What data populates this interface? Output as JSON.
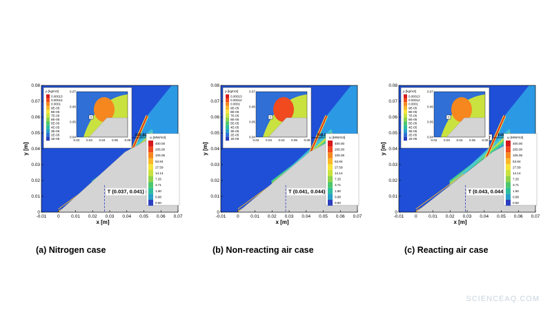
{
  "panels": [
    {
      "caption": "(a) Nitrogen case",
      "t_label": "T (0.037, 0.041) m",
      "l_label": "l=0.021 m",
      "t_marker": "T",
      "inset_t": "T",
      "t_x": 0.027,
      "y_ticks": [
        "0",
        "0.01",
        "0.02",
        "0.03",
        "0.04",
        "0.05",
        "0.06",
        "0.07",
        "0.08"
      ],
      "x_ticks": [
        "-0.01",
        "0",
        "0.01",
        "0.02",
        "0.03",
        "0.04",
        "0.05",
        "0.06",
        "0.07"
      ],
      "x_label": "x [m]",
      "y_label": "y [m]",
      "inset_title": "ρ [kg/m3]",
      "inset_legend": [
        "0.00013",
        "0.00012",
        "0.0001",
        "9E-05",
        "8E-05",
        "7E-05",
        "6E-05",
        "5E-05",
        "4E-05",
        "3E-05",
        "2E-05",
        "1E-05"
      ],
      "inset_x_ticks": [
        "0.02",
        "0.03",
        "0.04",
        "0.05",
        "0.06"
      ],
      "inset_y_ticks": [
        "0.04",
        "0.05",
        "0.06",
        "0.07"
      ],
      "omega_title": "ω [MW/m3]",
      "omega_legend": [
        "400.00",
        "205.00",
        "105.06",
        "53.84",
        "27.59",
        "14.14",
        "7.25",
        "3.71",
        "1.90",
        "0.98",
        "0.50"
      ]
    },
    {
      "caption": "(b) Non-reacting air case",
      "t_label": "T (0.041, 0.044) m",
      "l_label": "l=0.018 m",
      "t_marker": "T",
      "inset_t": "T",
      "t_x": 0.028,
      "y_ticks": [
        "0",
        "0.01",
        "0.02",
        "0.03",
        "0.04",
        "0.05",
        "0.06",
        "0.07",
        "0.08"
      ],
      "x_ticks": [
        "-0.01",
        "0",
        "0.01",
        "0.02",
        "0.03",
        "0.04",
        "0.05",
        "0.06",
        "0.07"
      ],
      "x_label": "x [m]",
      "y_label": "y [m]",
      "inset_title": "ρ [kg/m3]",
      "inset_legend": [
        "0.00013",
        "0.00012",
        "0.0001",
        "9E-05",
        "8E-05",
        "7E-05",
        "6E-05",
        "5E-05",
        "4E-05",
        "3E-05",
        "2E-05",
        "1E-05"
      ],
      "inset_x_ticks": [
        "0.02",
        "0.03",
        "0.04",
        "0.05",
        "0.06"
      ],
      "inset_y_ticks": [
        "0.04",
        "0.05",
        "0.06",
        "0.07"
      ],
      "omega_title": "ω [MW/m3]",
      "omega_legend": [
        "400.00",
        "205.00",
        "105.06",
        "53.84",
        "27.59",
        "14.14",
        "7.25",
        "3.71",
        "1.90",
        "0.98",
        "0.50"
      ]
    },
    {
      "caption": "(c) Reacting air case",
      "t_label": "T (0.043, 0.044) m",
      "l_label": "l=0.016 m",
      "t_marker": "T",
      "inset_t": "T",
      "t_x": 0.029,
      "y_ticks": [
        "0",
        "0.01",
        "0.02",
        "0.03",
        "0.04",
        "0.05",
        "0.06",
        "0.07",
        "0.08"
      ],
      "x_ticks": [
        "-0.01",
        "0",
        "0.01",
        "0.02",
        "0.03",
        "0.04",
        "0.05",
        "0.06",
        "0.07"
      ],
      "x_label": "x [m]",
      "y_label": "y [m]",
      "inset_title": "ρ [kg/m3]",
      "inset_legend": [
        "0.00013",
        "0.00012",
        "0.0001",
        "9E-05",
        "8E-05",
        "7E-05",
        "6E-05",
        "5E-05",
        "4E-05",
        "3E-05",
        "2E-05",
        "1E-05"
      ],
      "inset_x_ticks": [
        "0.02",
        "0.03",
        "0.04",
        "0.05",
        "0.06"
      ],
      "inset_y_ticks": [
        "0.04",
        "0.05",
        "0.06",
        "0.07"
      ],
      "omega_title": "ω [MW/m3]",
      "omega_legend": [
        "400.00",
        "205.00",
        "105.06",
        "53.84",
        "27.59",
        "14.14",
        "7.25",
        "3.71",
        "1.90",
        "0.98",
        "0.50"
      ]
    }
  ],
  "watermark": "SCIENCEAQ.COM",
  "colors": {
    "background_flow": "#1f4fd6",
    "wall": "#d4d4d4",
    "shock_hot": "#e02020",
    "shear": "#39d6a8"
  }
}
